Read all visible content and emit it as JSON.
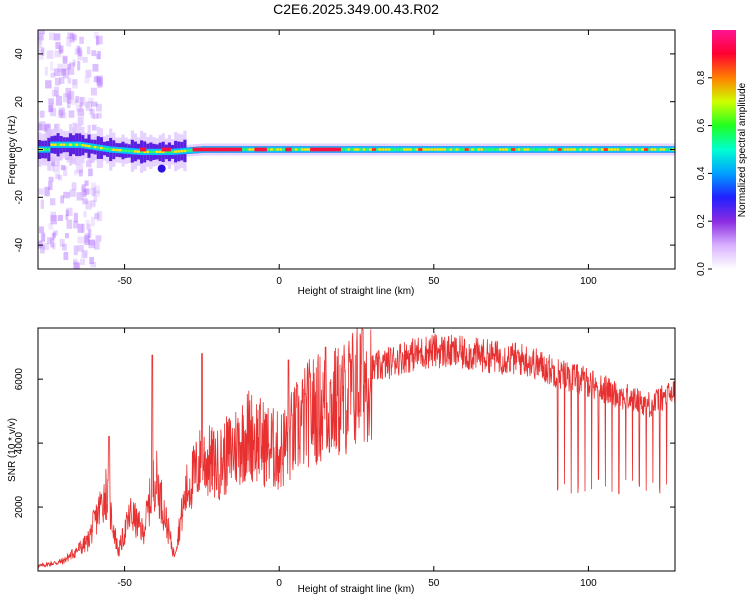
{
  "title": "C2E6.2025.349.00.43.R02",
  "spectrogram": {
    "type": "heatmap",
    "xlabel": "Height of straight line (km)",
    "ylabel": "Frequency (Hz)",
    "xlim": [
      -78,
      128
    ],
    "ylim": [
      -50,
      50
    ],
    "xticks": [
      -50,
      0,
      50,
      100
    ],
    "yticks": [
      -40,
      -20,
      0,
      20,
      40
    ],
    "colorbar": {
      "label": "Normalized spectral amplitude",
      "range": [
        0,
        1
      ],
      "ticks": [
        0.0,
        0.2,
        0.4,
        0.6,
        0.8
      ],
      "colors": [
        "#ffffff",
        "#b36bff",
        "#4020ff",
        "#00b4ff",
        "#00ffb0",
        "#40ff00",
        "#e0ff00",
        "#ff8000",
        "#ff0040",
        "#ff1493"
      ]
    },
    "ridge": [
      {
        "x": -74,
        "f": 2
      },
      {
        "x": -65,
        "f": 2
      },
      {
        "x": -55,
        "f": 0
      },
      {
        "x": -45,
        "f": -1
      },
      {
        "x": -35,
        "f": -1
      },
      {
        "x": -25,
        "f": 0
      },
      {
        "x": 0,
        "f": 0
      },
      {
        "x": 50,
        "f": 0
      },
      {
        "x": 100,
        "f": 0
      },
      {
        "x": 128,
        "f": 0
      }
    ]
  },
  "snr": {
    "type": "line",
    "xlabel": "Height of straight line (km)",
    "ylabel": "SNR (10 * v/v)",
    "xlim": [
      -78,
      128
    ],
    "ylim": [
      0,
      7600
    ],
    "xticks": [
      -50,
      0,
      50,
      100
    ],
    "yticks": [
      2000,
      4000,
      6000
    ],
    "color": "#e83030",
    "envelope": [
      {
        "x": -78,
        "y": 150
      },
      {
        "x": -70,
        "y": 300
      },
      {
        "x": -62,
        "y": 900
      },
      {
        "x": -56,
        "y": 2500
      },
      {
        "x": -52,
        "y": 600
      },
      {
        "x": -48,
        "y": 1800
      },
      {
        "x": -44,
        "y": 1200
      },
      {
        "x": -40,
        "y": 3000
      },
      {
        "x": -34,
        "y": 500
      },
      {
        "x": -30,
        "y": 2500
      },
      {
        "x": -25,
        "y": 3500
      },
      {
        "x": -20,
        "y": 3300
      },
      {
        "x": -10,
        "y": 4300
      },
      {
        "x": 0,
        "y": 3700
      },
      {
        "x": 10,
        "y": 5000
      },
      {
        "x": 20,
        "y": 5300
      },
      {
        "x": 30,
        "y": 6300
      },
      {
        "x": 40,
        "y": 6700
      },
      {
        "x": 50,
        "y": 6900
      },
      {
        "x": 60,
        "y": 6800
      },
      {
        "x": 70,
        "y": 6700
      },
      {
        "x": 80,
        "y": 6600
      },
      {
        "x": 90,
        "y": 6200
      },
      {
        "x": 100,
        "y": 5900
      },
      {
        "x": 110,
        "y": 5500
      },
      {
        "x": 120,
        "y": 5200
      },
      {
        "x": 128,
        "y": 5600
      }
    ],
    "spikes": [
      {
        "x": -55,
        "y": 4200
      },
      {
        "x": -41,
        "y": 6750
      },
      {
        "x": -25,
        "y": 6800
      },
      {
        "x": 3,
        "y": 6600
      },
      {
        "x": 15,
        "y": 7000
      },
      {
        "x": 27,
        "y": 7550
      }
    ],
    "dips": {
      "start": 90,
      "end": 126,
      "spacing": 2.2,
      "depth_to": 2400
    }
  }
}
